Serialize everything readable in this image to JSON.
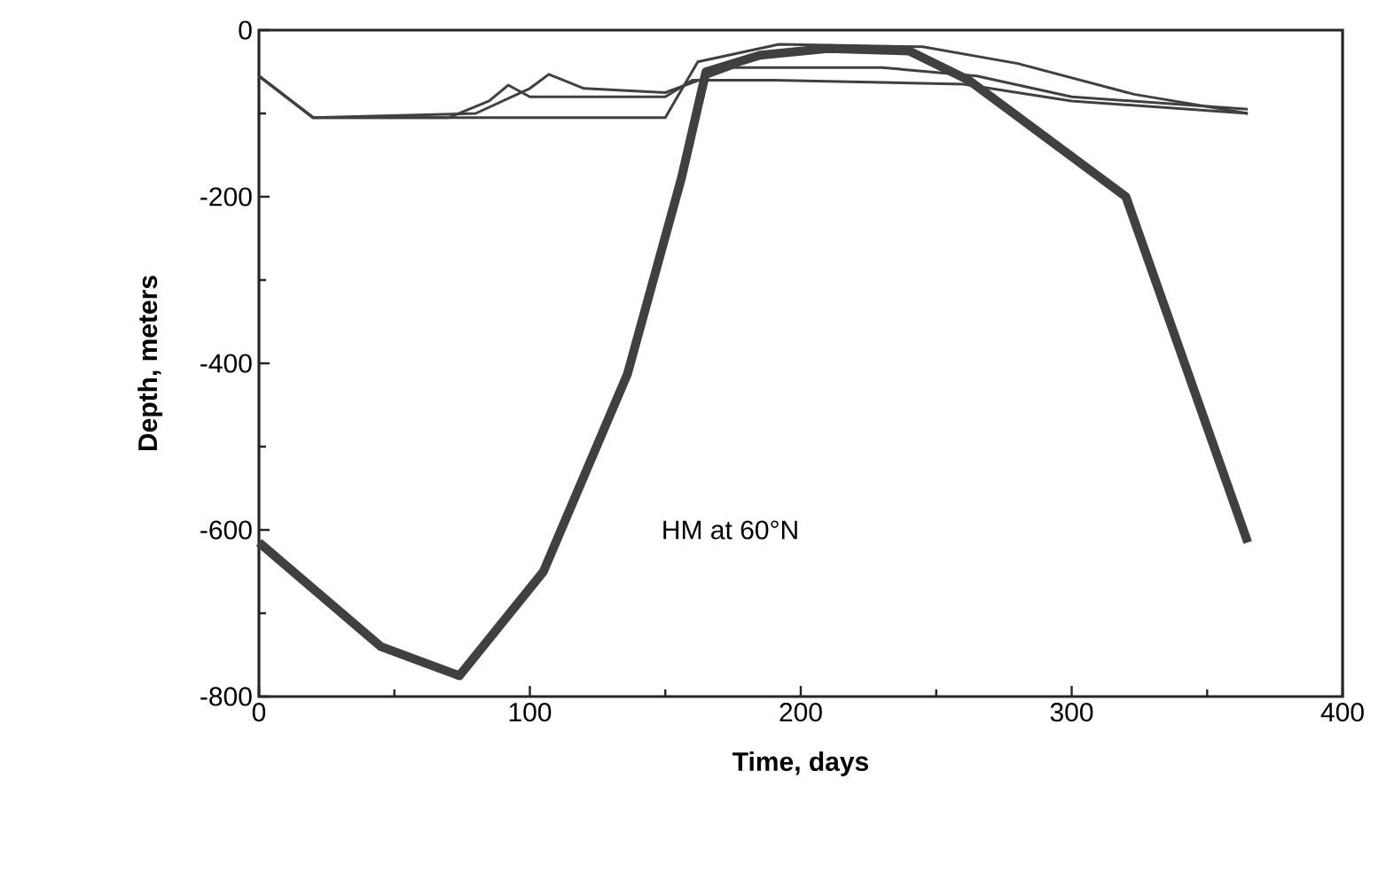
{
  "chart_data": {
    "type": "line",
    "xlabel": "Time,   days",
    "ylabel": "Depth,   meters",
    "xlim": [
      0,
      400
    ],
    "ylim": [
      -800,
      0
    ],
    "xticks": [
      0,
      100,
      200,
      300,
      400
    ],
    "yticks": [
      -800,
      -600,
      -400,
      -200,
      0
    ],
    "series": [
      {
        "color": "#404040",
        "x": [
          0,
          45,
          74,
          105,
          136,
          156,
          165,
          185,
          210,
          240,
          262,
          320,
          365
        ],
        "values": [
          -615,
          -740,
          -775,
          -650,
          -413,
          -177,
          -50,
          -30,
          -22,
          -25,
          -60,
          -200,
          -615
        ]
      },
      {
        "color": "#404040",
        "x": [
          0,
          20,
          70,
          85,
          92,
          100,
          150,
          160,
          190,
          260,
          300,
          365
        ],
        "values": [
          -55,
          -105,
          -105,
          -85,
          -66,
          -80,
          -80,
          -60,
          -60,
          -65,
          -85,
          -100
        ]
      },
      {
        "color": "#404040",
        "x": [
          0,
          20,
          80,
          100,
          107,
          120,
          150,
          175,
          230,
          265,
          300,
          365
        ],
        "values": [
          -55,
          -105,
          -100,
          -70,
          -53,
          -70,
          -75,
          -45,
          -45,
          -55,
          -80,
          -95
        ]
      },
      {
        "color": "#404040",
        "x": [
          0,
          20,
          150,
          162,
          192,
          245,
          280,
          323,
          365
        ],
        "values": [
          -55,
          -105,
          -105,
          -38,
          -17,
          -20,
          -40,
          -77,
          -100
        ]
      }
    ],
    "annotations": [
      "HM at 60°N"
    ],
    "grid": false,
    "marker": "none",
    "line_style": "solid"
  }
}
